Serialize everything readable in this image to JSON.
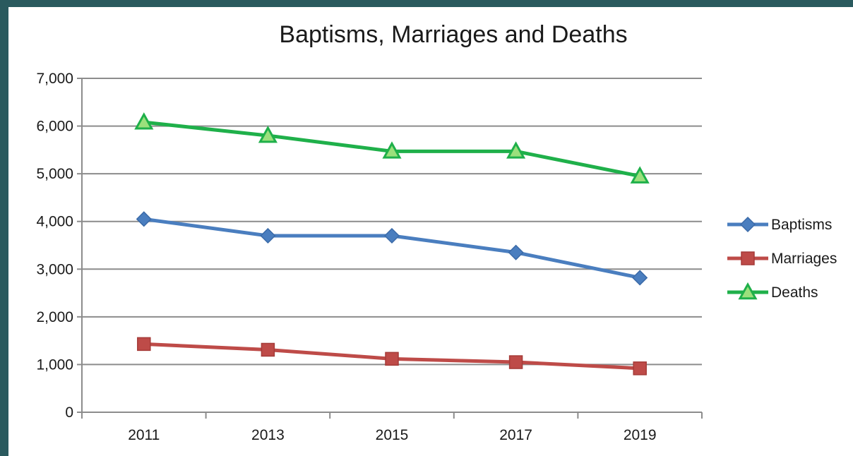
{
  "chart_data": {
    "type": "line",
    "title": "Baptisms, Marriages and Deaths",
    "xlabel": "",
    "ylabel": "",
    "categories": [
      "2011",
      "2013",
      "2015",
      "2017",
      "2019"
    ],
    "ylim": [
      0,
      7000
    ],
    "y_ticks": [
      0,
      1000,
      2000,
      3000,
      4000,
      5000,
      6000,
      7000
    ],
    "y_tick_labels": [
      "0",
      "1,000",
      "2,000",
      "3,000",
      "4,000",
      "5,000",
      "6,000",
      "7,000"
    ],
    "grid": true,
    "legend_position": "right",
    "series": [
      {
        "name": "Baptisms",
        "values": [
          4050,
          3700,
          3700,
          3350,
          2820
        ],
        "color": "#4a7ebf",
        "marker": "diamond"
      },
      {
        "name": "Marriages",
        "values": [
          1430,
          1310,
          1120,
          1050,
          920
        ],
        "color": "#be4b48",
        "marker": "square"
      },
      {
        "name": "Deaths",
        "values": [
          6080,
          5800,
          5470,
          5470,
          4950
        ],
        "color": "#1fb04a",
        "marker": "triangle"
      }
    ]
  }
}
